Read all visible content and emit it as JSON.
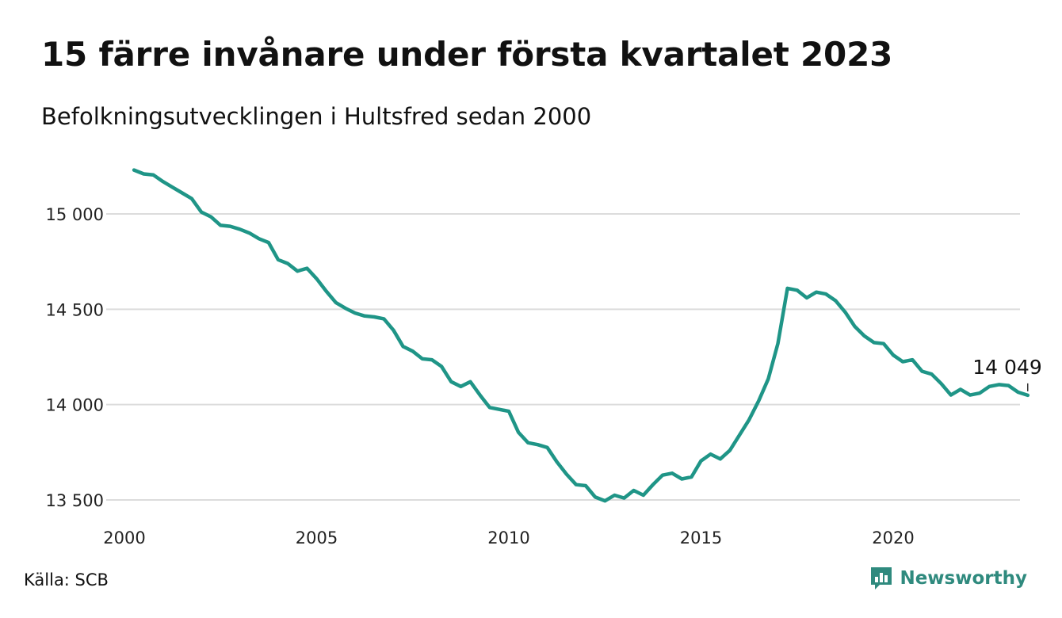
{
  "title": "15 färre invånare under första kvartalet 2023",
  "subtitle": "Befolkningsutvecklingen i Hultsfred sedan 2000",
  "source": "Källa: SCB",
  "brand": {
    "name": "Newsworthy",
    "color": "#2f8a7e",
    "icon": "newsworthy-logo-icon"
  },
  "chart_data": {
    "type": "line",
    "line_color": "#1f9587",
    "grid": true,
    "xlim": [
      2000,
      2023.25
    ],
    "ylim": [
      13500,
      15250
    ],
    "x_ticks": [
      {
        "value": 2000,
        "label": "2000"
      },
      {
        "value": 2005,
        "label": "2005"
      },
      {
        "value": 2010,
        "label": "2010"
      },
      {
        "value": 2015,
        "label": "2015"
      },
      {
        "value": 2020,
        "label": "2020"
      }
    ],
    "y_ticks": [
      {
        "value": 13500,
        "label": "13 500"
      },
      {
        "value": 14000,
        "label": "14 000"
      },
      {
        "value": 14500,
        "label": "14 500"
      },
      {
        "value": 15000,
        "label": "15 000"
      }
    ],
    "annotation": {
      "x": 2023.25,
      "y": 14049,
      "label": "14 049"
    },
    "series": [
      {
        "points": [
          [
            2000.25,
            15230
          ],
          [
            2000.5,
            15210
          ],
          [
            2000.75,
            15205
          ],
          [
            2001.0,
            15170
          ],
          [
            2001.25,
            15140
          ],
          [
            2001.5,
            15110
          ],
          [
            2001.75,
            15080
          ],
          [
            2002.0,
            15010
          ],
          [
            2002.25,
            14985
          ],
          [
            2002.5,
            14940
          ],
          [
            2002.75,
            14935
          ],
          [
            2003.0,
            14920
          ],
          [
            2003.25,
            14900
          ],
          [
            2003.5,
            14870
          ],
          [
            2003.75,
            14850
          ],
          [
            2004.0,
            14760
          ],
          [
            2004.25,
            14740
          ],
          [
            2004.5,
            14700
          ],
          [
            2004.75,
            14715
          ],
          [
            2005.0,
            14660
          ],
          [
            2005.25,
            14595
          ],
          [
            2005.5,
            14535
          ],
          [
            2005.75,
            14505
          ],
          [
            2006.0,
            14480
          ],
          [
            2006.25,
            14465
          ],
          [
            2006.5,
            14460
          ],
          [
            2006.75,
            14450
          ],
          [
            2007.0,
            14390
          ],
          [
            2007.25,
            14305
          ],
          [
            2007.5,
            14280
          ],
          [
            2007.75,
            14240
          ],
          [
            2008.0,
            14235
          ],
          [
            2008.25,
            14200
          ],
          [
            2008.5,
            14120
          ],
          [
            2008.75,
            14095
          ],
          [
            2009.0,
            14120
          ],
          [
            2009.25,
            14050
          ],
          [
            2009.5,
            13985
          ],
          [
            2009.75,
            13975
          ],
          [
            2010.0,
            13965
          ],
          [
            2010.25,
            13855
          ],
          [
            2010.5,
            13800
          ],
          [
            2010.75,
            13790
          ],
          [
            2011.0,
            13775
          ],
          [
            2011.25,
            13700
          ],
          [
            2011.5,
            13635
          ],
          [
            2011.75,
            13580
          ],
          [
            2012.0,
            13575
          ],
          [
            2012.25,
            13515
          ],
          [
            2012.5,
            13495
          ],
          [
            2012.75,
            13525
          ],
          [
            2013.0,
            13510
          ],
          [
            2013.25,
            13550
          ],
          [
            2013.5,
            13525
          ],
          [
            2013.75,
            13580
          ],
          [
            2014.0,
            13630
          ],
          [
            2014.25,
            13640
          ],
          [
            2014.5,
            13610
          ],
          [
            2014.75,
            13620
          ],
          [
            2015.0,
            13705
          ],
          [
            2015.25,
            13740
          ],
          [
            2015.5,
            13715
          ],
          [
            2015.75,
            13760
          ],
          [
            2016.0,
            13840
          ],
          [
            2016.25,
            13920
          ],
          [
            2016.5,
            14020
          ],
          [
            2016.75,
            14135
          ],
          [
            2017.0,
            14320
          ],
          [
            2017.25,
            14610
          ],
          [
            2017.5,
            14600
          ],
          [
            2017.75,
            14560
          ],
          [
            2018.0,
            14590
          ],
          [
            2018.25,
            14580
          ],
          [
            2018.5,
            14545
          ],
          [
            2018.75,
            14485
          ],
          [
            2019.0,
            14410
          ],
          [
            2019.25,
            14360
          ],
          [
            2019.5,
            14325
          ],
          [
            2019.75,
            14320
          ],
          [
            2020.0,
            14260
          ],
          [
            2020.25,
            14225
          ],
          [
            2020.5,
            14235
          ],
          [
            2020.75,
            14175
          ],
          [
            2021.0,
            14160
          ],
          [
            2021.25,
            14110
          ],
          [
            2021.5,
            14050
          ],
          [
            2021.75,
            14080
          ],
          [
            2022.0,
            14050
          ],
          [
            2022.25,
            14060
          ],
          [
            2022.5,
            14095
          ],
          [
            2022.75,
            14105
          ],
          [
            2023.0,
            14100
          ],
          [
            2023.25,
            14065
          ],
          [
            2023.5,
            14049
          ]
        ]
      }
    ]
  }
}
